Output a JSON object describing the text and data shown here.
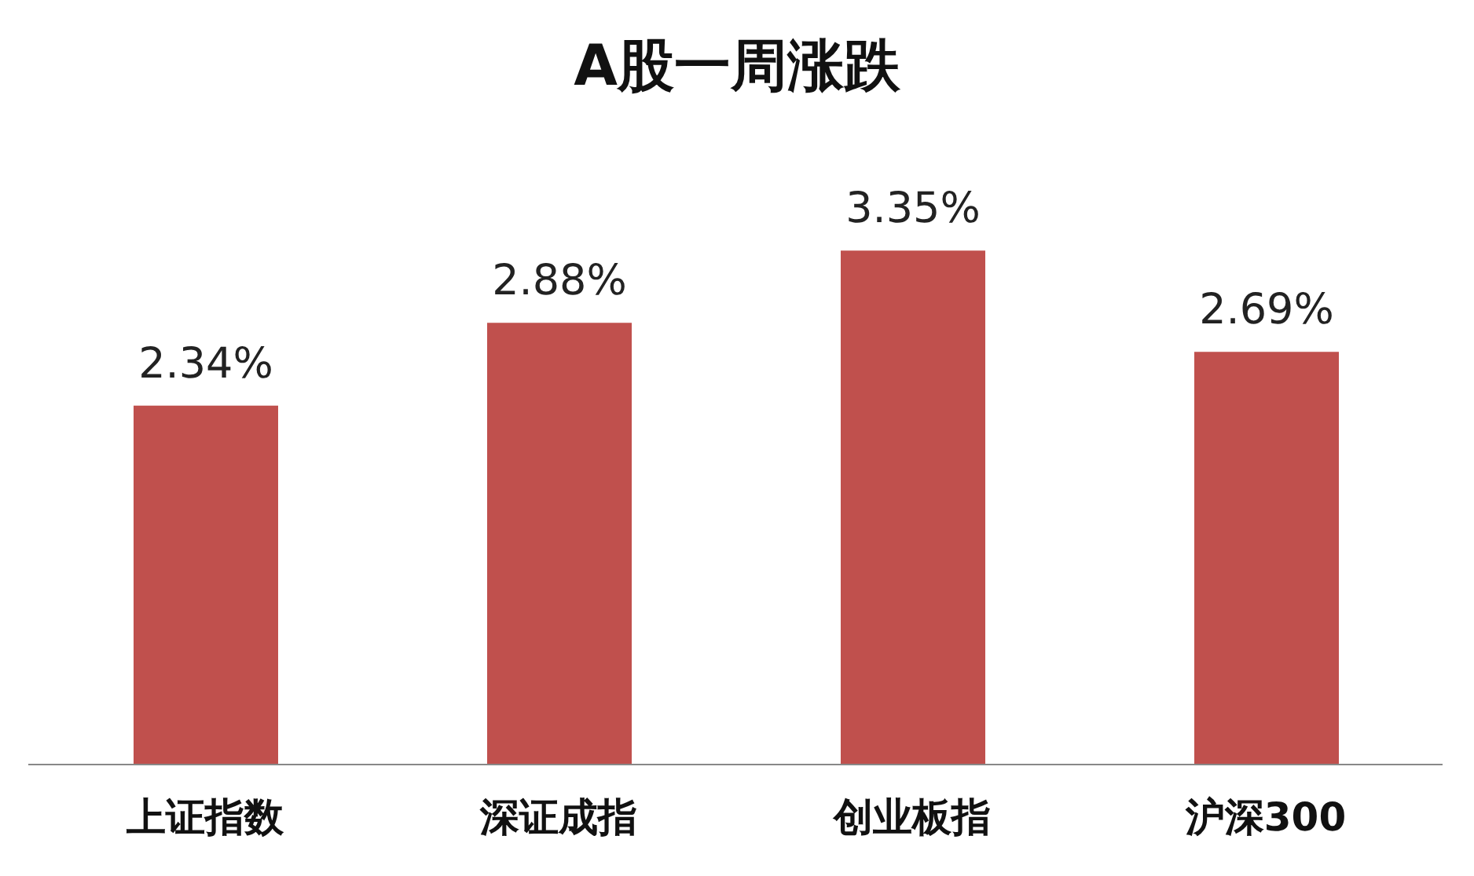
{
  "chart_data": {
    "type": "bar",
    "title": "A股一周涨跌",
    "categories": [
      "上证指数",
      "深证成指",
      "创业板指",
      "沪深300"
    ],
    "values": [
      2.34,
      2.88,
      3.35,
      2.69
    ],
    "color": "#c0504d",
    "value_labels": [
      "2.34%",
      "2.88%",
      "3.35%",
      "2.69%"
    ]
  }
}
